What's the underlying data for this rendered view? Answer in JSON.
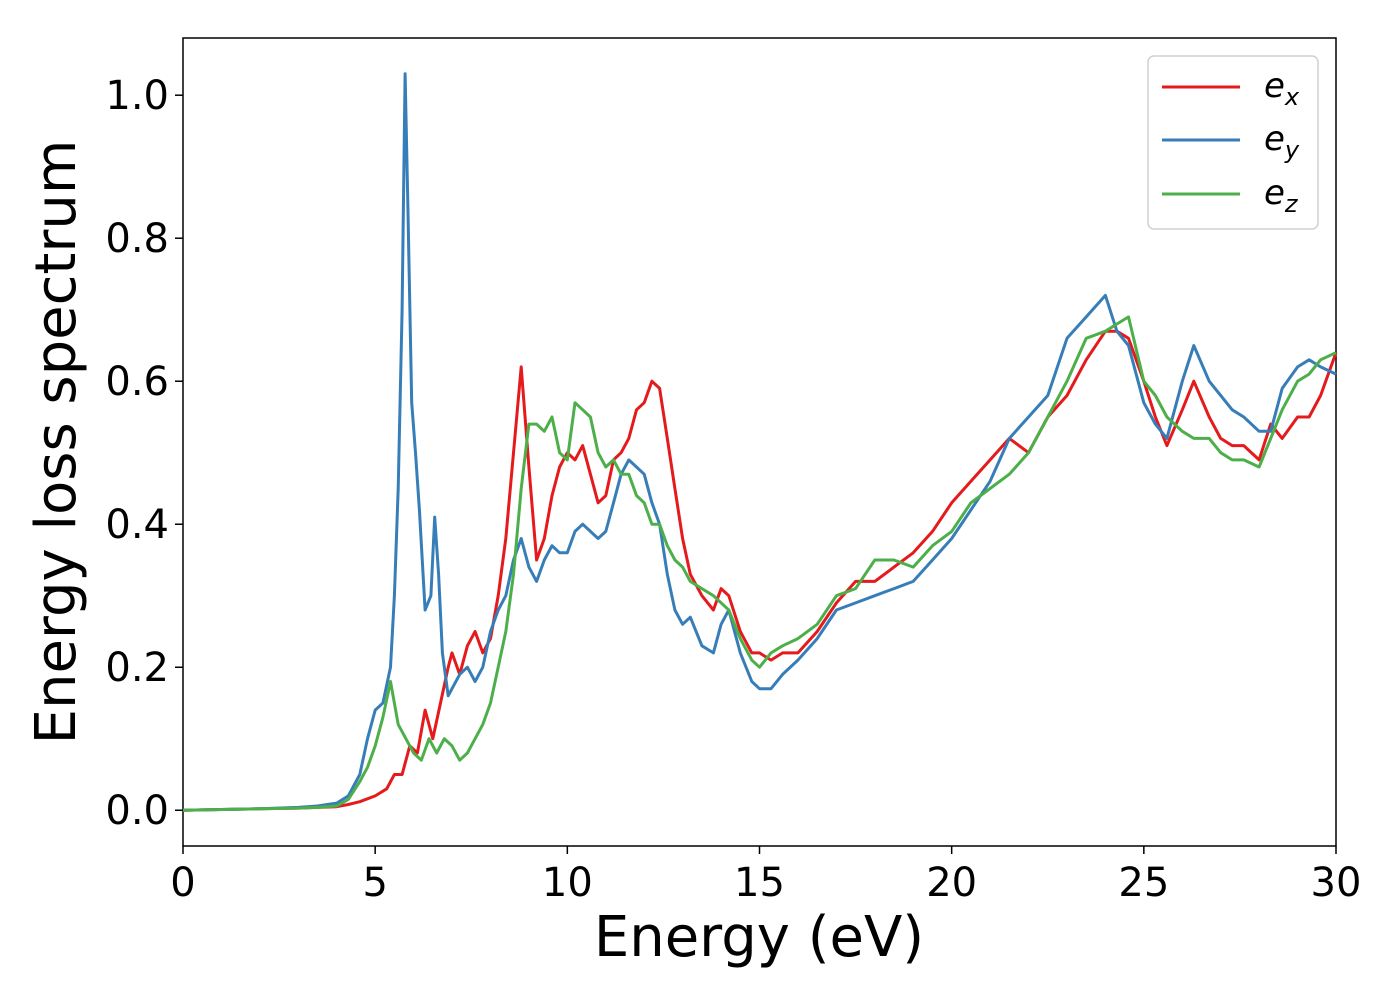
{
  "chart_data": {
    "type": "line",
    "xlabel": "Energy (eV)",
    "ylabel": "Energy loss spectrum",
    "xlim": [
      0,
      30
    ],
    "ylim": [
      -0.05,
      1.08
    ],
    "x_ticks": [
      0,
      5,
      10,
      15,
      20,
      25,
      30
    ],
    "x_tick_labels": [
      "0",
      "5",
      "10",
      "15",
      "20",
      "25",
      "30"
    ],
    "y_ticks": [
      0.0,
      0.2,
      0.4,
      0.6,
      0.8,
      1.0
    ],
    "y_tick_labels": [
      "0.0",
      "0.2",
      "0.4",
      "0.6",
      "0.8",
      "1.0"
    ],
    "grid": false,
    "legend_position": "top-right",
    "series": [
      {
        "name": "e",
        "subscript": "x",
        "color": "#e41a1c",
        "x": [
          0,
          1,
          2,
          3,
          3.5,
          4,
          4.3,
          4.6,
          5.0,
          5.3,
          5.5,
          5.7,
          5.9,
          6.1,
          6.3,
          6.5,
          6.7,
          6.9,
          7.0,
          7.2,
          7.4,
          7.6,
          7.8,
          8.0,
          8.2,
          8.4,
          8.6,
          8.8,
          9.0,
          9.2,
          9.4,
          9.6,
          9.8,
          10.0,
          10.2,
          10.4,
          10.6,
          10.8,
          11.0,
          11.2,
          11.4,
          11.6,
          11.8,
          12.0,
          12.2,
          12.4,
          12.6,
          12.8,
          13.0,
          13.2,
          13.5,
          13.8,
          14.0,
          14.2,
          14.5,
          14.8,
          15.0,
          15.3,
          15.6,
          16.0,
          16.5,
          17.0,
          17.5,
          18.0,
          18.5,
          19.0,
          19.5,
          20.0,
          20.5,
          21.0,
          21.5,
          22.0,
          22.5,
          23.0,
          23.5,
          24.0,
          24.3,
          24.6,
          25.0,
          25.3,
          25.6,
          26.0,
          26.3,
          26.7,
          27.0,
          27.3,
          27.6,
          28.0,
          28.3,
          28.6,
          29.0,
          29.3,
          29.6,
          30.0
        ],
        "y": [
          0.0,
          0.001,
          0.002,
          0.003,
          0.004,
          0.005,
          0.008,
          0.012,
          0.02,
          0.03,
          0.05,
          0.05,
          0.09,
          0.08,
          0.14,
          0.1,
          0.15,
          0.2,
          0.22,
          0.19,
          0.23,
          0.25,
          0.22,
          0.24,
          0.3,
          0.38,
          0.5,
          0.62,
          0.48,
          0.35,
          0.38,
          0.44,
          0.48,
          0.5,
          0.49,
          0.51,
          0.47,
          0.43,
          0.44,
          0.49,
          0.5,
          0.52,
          0.56,
          0.57,
          0.6,
          0.59,
          0.52,
          0.45,
          0.38,
          0.33,
          0.3,
          0.28,
          0.31,
          0.3,
          0.25,
          0.22,
          0.22,
          0.21,
          0.22,
          0.22,
          0.25,
          0.29,
          0.32,
          0.32,
          0.34,
          0.36,
          0.39,
          0.43,
          0.46,
          0.49,
          0.52,
          0.5,
          0.55,
          0.58,
          0.63,
          0.67,
          0.67,
          0.66,
          0.6,
          0.55,
          0.51,
          0.56,
          0.6,
          0.55,
          0.52,
          0.51,
          0.51,
          0.49,
          0.54,
          0.52,
          0.55,
          0.55,
          0.58,
          0.64
        ]
      },
      {
        "name": "e",
        "subscript": "y",
        "color": "#377eb8",
        "x": [
          0,
          1,
          2,
          3,
          3.5,
          4,
          4.3,
          4.6,
          4.8,
          5.0,
          5.2,
          5.4,
          5.5,
          5.6,
          5.7,
          5.78,
          5.85,
          5.95,
          6.05,
          6.15,
          6.3,
          6.45,
          6.55,
          6.65,
          6.75,
          6.9,
          7.0,
          7.2,
          7.4,
          7.6,
          7.8,
          8.0,
          8.2,
          8.4,
          8.6,
          8.8,
          9.0,
          9.2,
          9.4,
          9.6,
          9.8,
          10.0,
          10.2,
          10.4,
          10.6,
          10.8,
          11.0,
          11.2,
          11.4,
          11.6,
          11.8,
          12.0,
          12.2,
          12.4,
          12.6,
          12.8,
          13.0,
          13.2,
          13.5,
          13.8,
          14.0,
          14.2,
          14.5,
          14.8,
          15.0,
          15.3,
          15.6,
          16.0,
          16.5,
          17.0,
          17.5,
          18.0,
          18.5,
          19.0,
          19.5,
          20.0,
          20.5,
          21.0,
          21.5,
          22.0,
          22.5,
          23.0,
          23.5,
          24.0,
          24.3,
          24.6,
          25.0,
          25.3,
          25.6,
          26.0,
          26.3,
          26.7,
          27.0,
          27.3,
          27.6,
          28.0,
          28.3,
          28.6,
          29.0,
          29.3,
          29.6,
          30.0
        ],
        "y": [
          0.0,
          0.001,
          0.002,
          0.004,
          0.006,
          0.01,
          0.02,
          0.05,
          0.1,
          0.14,
          0.15,
          0.2,
          0.3,
          0.45,
          0.7,
          1.03,
          0.85,
          0.57,
          0.5,
          0.42,
          0.28,
          0.3,
          0.41,
          0.33,
          0.22,
          0.16,
          0.17,
          0.19,
          0.2,
          0.18,
          0.2,
          0.25,
          0.28,
          0.3,
          0.35,
          0.38,
          0.34,
          0.32,
          0.35,
          0.37,
          0.36,
          0.36,
          0.39,
          0.4,
          0.39,
          0.38,
          0.39,
          0.43,
          0.47,
          0.49,
          0.48,
          0.47,
          0.43,
          0.4,
          0.33,
          0.28,
          0.26,
          0.27,
          0.23,
          0.22,
          0.26,
          0.28,
          0.22,
          0.18,
          0.17,
          0.17,
          0.19,
          0.21,
          0.24,
          0.28,
          0.29,
          0.3,
          0.31,
          0.32,
          0.35,
          0.38,
          0.42,
          0.46,
          0.52,
          0.55,
          0.58,
          0.66,
          0.69,
          0.72,
          0.67,
          0.65,
          0.57,
          0.54,
          0.52,
          0.6,
          0.65,
          0.6,
          0.58,
          0.56,
          0.55,
          0.53,
          0.53,
          0.59,
          0.62,
          0.63,
          0.62,
          0.61
        ]
      },
      {
        "name": "e",
        "subscript": "z",
        "color": "#4daf4a",
        "x": [
          0,
          1,
          2,
          3,
          3.5,
          4,
          4.3,
          4.6,
          4.8,
          5.0,
          5.2,
          5.4,
          5.6,
          5.8,
          6.0,
          6.2,
          6.4,
          6.6,
          6.8,
          7.0,
          7.2,
          7.4,
          7.6,
          7.8,
          8.0,
          8.2,
          8.4,
          8.6,
          8.8,
          9.0,
          9.2,
          9.4,
          9.6,
          9.8,
          10.0,
          10.2,
          10.4,
          10.6,
          10.8,
          11.0,
          11.2,
          11.4,
          11.6,
          11.8,
          12.0,
          12.2,
          12.4,
          12.6,
          12.8,
          13.0,
          13.2,
          13.5,
          13.8,
          14.0,
          14.2,
          14.5,
          14.8,
          15.0,
          15.3,
          15.6,
          16.0,
          16.5,
          17.0,
          17.5,
          18.0,
          18.5,
          19.0,
          19.5,
          20.0,
          20.5,
          21.0,
          21.5,
          22.0,
          22.5,
          23.0,
          23.5,
          24.0,
          24.3,
          24.6,
          25.0,
          25.3,
          25.6,
          26.0,
          26.3,
          26.7,
          27.0,
          27.3,
          27.6,
          28.0,
          28.3,
          28.6,
          29.0,
          29.3,
          29.6,
          30.0
        ],
        "y": [
          0.0,
          0.001,
          0.002,
          0.003,
          0.004,
          0.006,
          0.015,
          0.04,
          0.06,
          0.09,
          0.13,
          0.18,
          0.12,
          0.1,
          0.08,
          0.07,
          0.1,
          0.08,
          0.1,
          0.09,
          0.07,
          0.08,
          0.1,
          0.12,
          0.15,
          0.2,
          0.25,
          0.33,
          0.45,
          0.54,
          0.54,
          0.53,
          0.55,
          0.5,
          0.49,
          0.57,
          0.56,
          0.55,
          0.5,
          0.48,
          0.49,
          0.47,
          0.47,
          0.44,
          0.43,
          0.4,
          0.4,
          0.37,
          0.35,
          0.34,
          0.32,
          0.31,
          0.3,
          0.29,
          0.28,
          0.24,
          0.21,
          0.2,
          0.22,
          0.23,
          0.24,
          0.26,
          0.3,
          0.31,
          0.35,
          0.35,
          0.34,
          0.37,
          0.39,
          0.43,
          0.45,
          0.47,
          0.5,
          0.55,
          0.6,
          0.66,
          0.67,
          0.68,
          0.69,
          0.6,
          0.58,
          0.55,
          0.53,
          0.52,
          0.52,
          0.5,
          0.49,
          0.49,
          0.48,
          0.52,
          0.56,
          0.6,
          0.61,
          0.63,
          0.64
        ]
      }
    ]
  }
}
